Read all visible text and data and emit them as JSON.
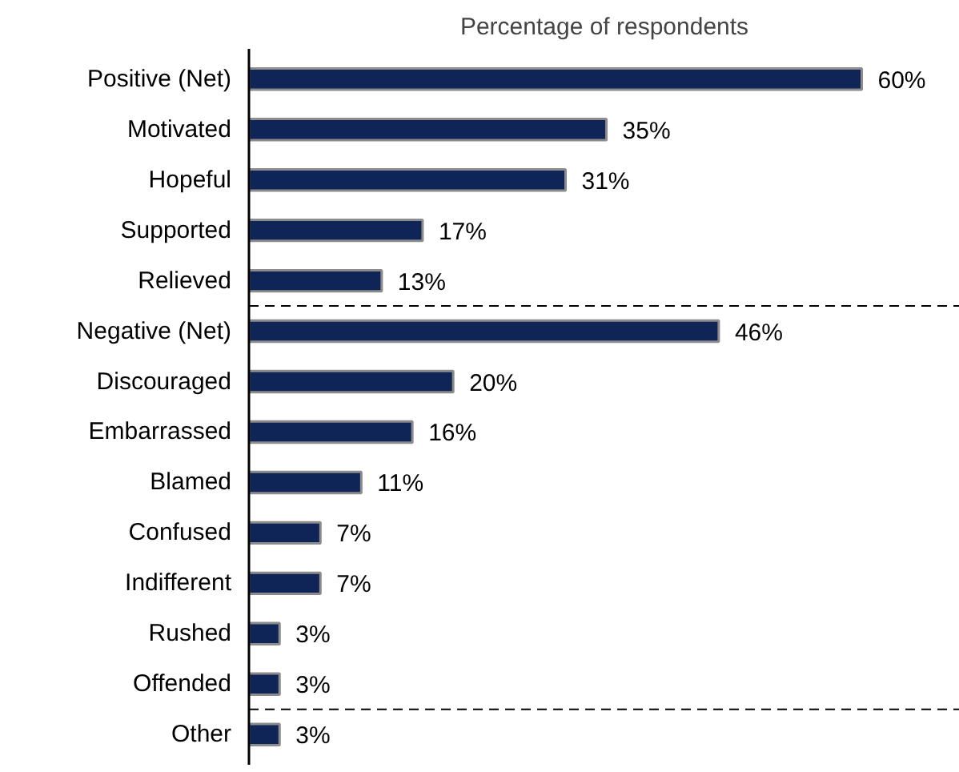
{
  "chart_data": {
    "type": "bar",
    "orientation": "horizontal",
    "data_labels": true,
    "title": "Percentage of respondents",
    "categories": [
      "Positive (Net)",
      "Motivated",
      "Hopeful",
      "Supported",
      "Relieved",
      "Negative (Net)",
      "Discouraged",
      "Embarrassed",
      "Blamed",
      "Confused",
      "Indifferent",
      "Rushed",
      "Offended",
      "Other"
    ],
    "values": [
      60,
      35,
      31,
      17,
      13,
      46,
      20,
      16,
      11,
      7,
      7,
      3,
      3,
      3
    ],
    "value_labels": [
      "60%",
      "35%",
      "31%",
      "17%",
      "13%",
      "46%",
      "20%",
      "16%",
      "11%",
      "7%",
      "7%",
      "3%",
      "3%",
      "3%"
    ],
    "color": "#0f2557"
  }
}
